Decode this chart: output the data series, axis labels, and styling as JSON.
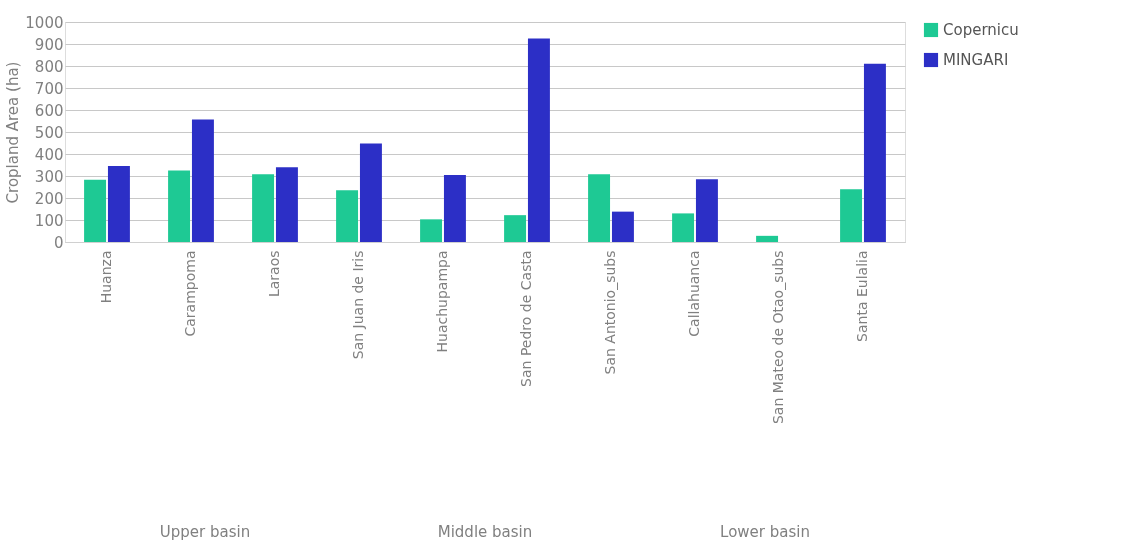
{
  "chart_data": {
    "type": "bar",
    "ylabel": "Cropland Area (ha)",
    "categories": [
      "Huanza",
      "Carampoma",
      "Laraos",
      "San Juan de Iris",
      "Huachupampa",
      "San Pedro de Casta",
      "San Antonio_subs",
      "Callahuanca",
      "San Mateo de Otao_subs",
      "Santa Eulalia"
    ],
    "series": [
      {
        "name": "Copernicu",
        "color": "#1ec994",
        "values": [
          283,
          325,
          308,
          235,
          103,
          122,
          308,
          130,
          28,
          240
        ]
      },
      {
        "name": "MINGARI",
        "color": "#2c2fc6",
        "values": [
          345,
          557,
          340,
          448,
          305,
          925,
          138,
          285,
          null,
          810
        ]
      }
    ],
    "ylim": [
      0,
      1000
    ],
    "yticks": [
      0,
      100,
      200,
      300,
      400,
      500,
      600,
      700,
      800,
      900,
      1000
    ],
    "grid": "y",
    "legend": "right",
    "annotations": [
      "Upper basin",
      "Middle basin",
      "Lower basin"
    ]
  }
}
